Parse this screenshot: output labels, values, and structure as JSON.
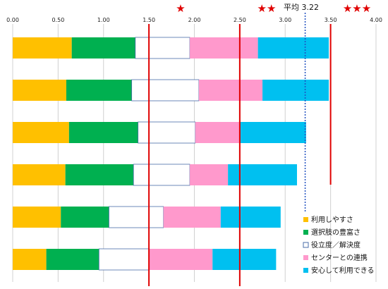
{
  "chart_data": {
    "type": "bar",
    "orientation": "horizontal",
    "stacked": true,
    "xlim": [
      0,
      4.0
    ],
    "x_ticks": [
      "0.00",
      "0.50",
      "1.00",
      "1.50",
      "2.00",
      "2.50",
      "3.00",
      "3.50",
      "4.00"
    ],
    "grid": true,
    "legend_position": "bottom-right",
    "categories": [
      "",
      "",
      "",
      "",
      "",
      ""
    ],
    "series": [
      {
        "name": "利用しやすさ",
        "color": "#ffc000",
        "values": [
          0.65,
          0.59,
          0.62,
          0.58,
          0.53,
          0.37
        ]
      },
      {
        "name": "選択肢の豊富さ",
        "color": "#00b050",
        "values": [
          0.7,
          0.72,
          0.76,
          0.75,
          0.53,
          0.58
        ]
      },
      {
        "name": "役立度／解決度",
        "color": "#ffffff",
        "values": [
          0.6,
          0.74,
          0.63,
          0.62,
          0.6,
          0.55
        ]
      },
      {
        "name": "センターとの連携",
        "color": "#ff99cc",
        "values": [
          0.75,
          0.7,
          0.49,
          0.42,
          0.63,
          0.7
        ]
      },
      {
        "name": "安心して利用できる",
        "color": "#00c0f0",
        "values": [
          0.78,
          0.73,
          0.73,
          0.76,
          0.66,
          0.7
        ]
      }
    ],
    "reference_lines": [
      {
        "value": 1.5,
        "color": "#e00000",
        "style": "solid"
      },
      {
        "value": 2.5,
        "color": "#e00000",
        "style": "solid"
      },
      {
        "value": 3.5,
        "color": "#e00000",
        "style": "solid"
      },
      {
        "value": 3.22,
        "color": "#2050c0",
        "style": "dotted"
      }
    ],
    "annotations": {
      "average_label": "平均 3.22",
      "star_one": "★",
      "star_two": "★★",
      "star_three": "★★★"
    }
  }
}
